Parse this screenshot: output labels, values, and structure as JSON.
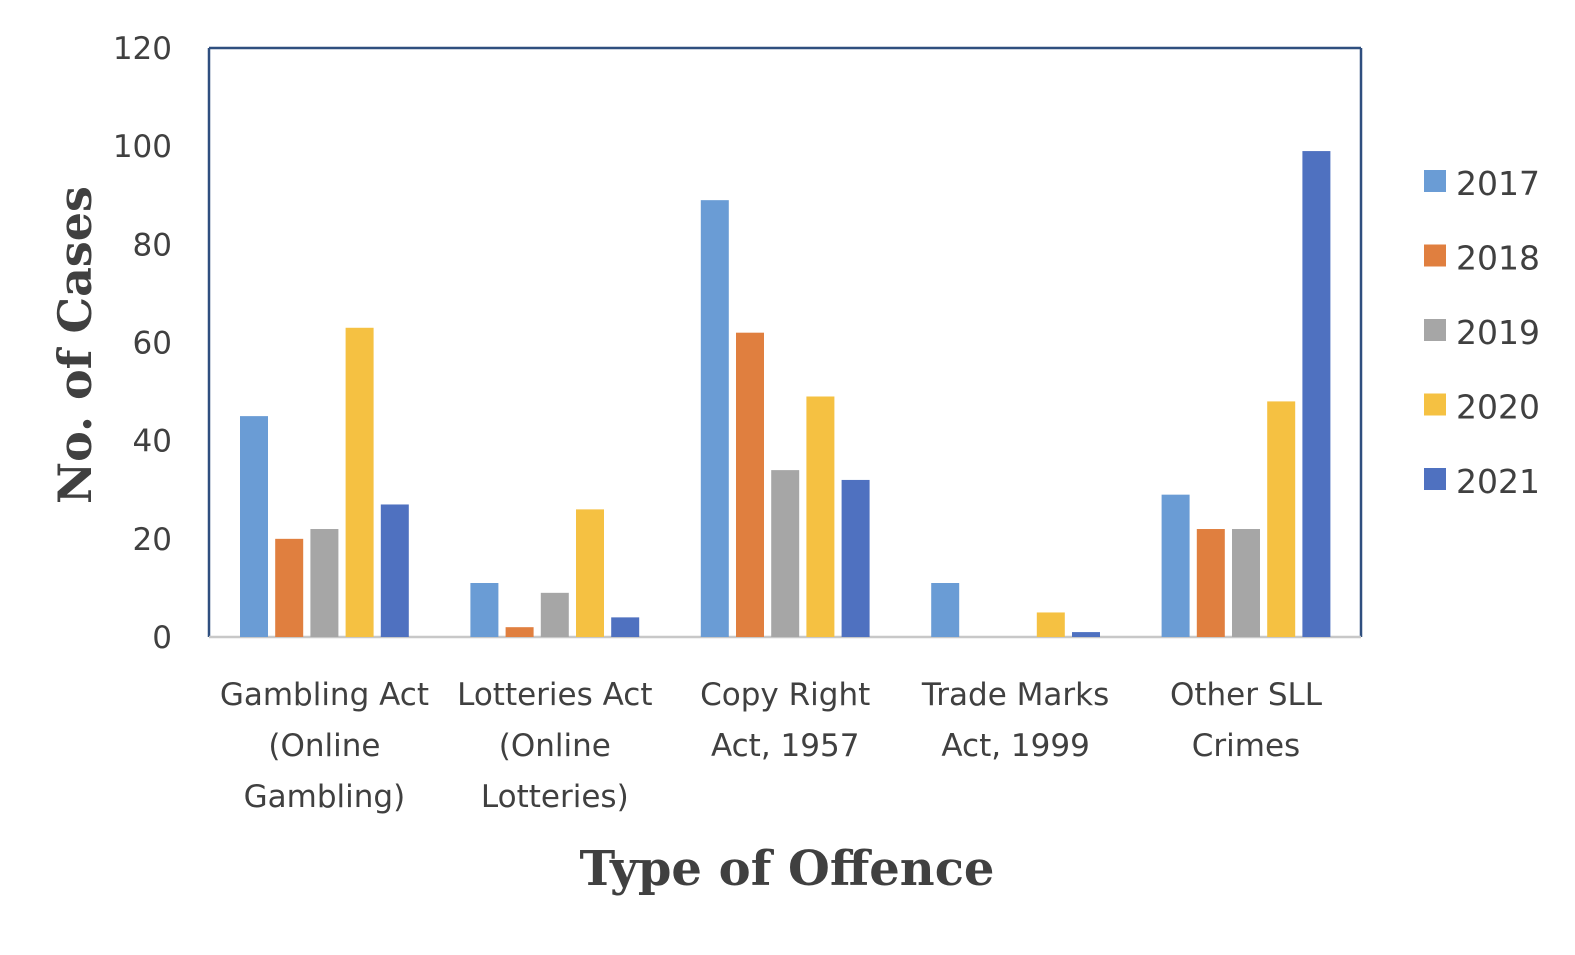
{
  "chart_data": {
    "type": "bar",
    "xlabel": "Type of Offence",
    "ylabel": "No. of Cases",
    "ylim": [
      0,
      120
    ],
    "yticks": [
      0,
      20,
      40,
      60,
      80,
      100,
      120
    ],
    "categories": [
      [
        "Gambling Act",
        "(Online",
        "Gambling)"
      ],
      [
        "Lotteries Act",
        "(Online",
        "Lotteries)"
      ],
      [
        "Copy Right",
        "Act, 1957"
      ],
      [
        "Trade Marks",
        "Act, 1999"
      ],
      [
        "Other SLL",
        "Crimes"
      ]
    ],
    "series": [
      {
        "name": "2017",
        "color": "#6a9cd5",
        "values": [
          45,
          11,
          89,
          11,
          29
        ]
      },
      {
        "name": "2018",
        "color": "#e07f3f",
        "values": [
          20,
          2,
          62,
          0,
          22
        ]
      },
      {
        "name": "2019",
        "color": "#a6a6a6",
        "values": [
          22,
          9,
          34,
          0,
          22
        ]
      },
      {
        "name": "2020",
        "color": "#f5c142",
        "values": [
          63,
          26,
          49,
          5,
          48
        ]
      },
      {
        "name": "2021",
        "color": "#4f71c0",
        "values": [
          27,
          4,
          32,
          1,
          99
        ]
      }
    ],
    "legend_position": "right",
    "grid": false
  }
}
